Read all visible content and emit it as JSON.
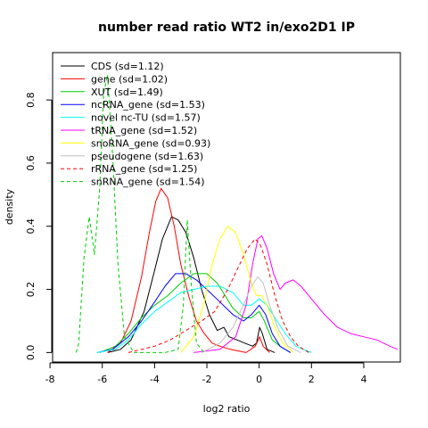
{
  "chart_data": {
    "type": "line",
    "title": "number read ratio WT2 in/exo2D1 IP",
    "xlabel": "log2 ratio",
    "ylabel": "density",
    "xlim": [
      -7.9,
      5.4
    ],
    "ylim": [
      -0.03,
      0.95
    ],
    "xticks": [
      -8,
      -6,
      -4,
      -2,
      0,
      2,
      4
    ],
    "yticks": [
      0.0,
      0.2,
      0.4,
      0.6,
      0.8
    ],
    "x_tick_labels": [
      "-8",
      "-6",
      "-4",
      "-2",
      "0",
      "2",
      "4"
    ],
    "y_tick_labels": [
      "0.0",
      "0.2",
      "0.4",
      "0.6",
      "0.8"
    ],
    "legend_position": "top-left",
    "grid": false,
    "series": [
      {
        "name": "CDS (sd=1.12)",
        "color": "#000000",
        "dash": "solid",
        "points": [
          [
            -5.8,
            0
          ],
          [
            -5.3,
            0.01
          ],
          [
            -4.9,
            0.04
          ],
          [
            -4.4,
            0.13
          ],
          [
            -4.0,
            0.26
          ],
          [
            -3.7,
            0.36
          ],
          [
            -3.35,
            0.43
          ],
          [
            -3.1,
            0.42
          ],
          [
            -2.8,
            0.38
          ],
          [
            -2.5,
            0.3
          ],
          [
            -2.2,
            0.2
          ],
          [
            -1.9,
            0.12
          ],
          [
            -1.6,
            0.07
          ],
          [
            -1.35,
            0.08
          ],
          [
            -1.15,
            0.05
          ],
          [
            -0.85,
            0.04
          ],
          [
            -0.55,
            0.03
          ],
          [
            -0.25,
            0.02
          ],
          [
            -0.1,
            0.03
          ],
          [
            0.02,
            0.08
          ],
          [
            0.12,
            0.06
          ],
          [
            0.3,
            0.01
          ],
          [
            0.6,
            0.0
          ]
        ]
      },
      {
        "name": "gene (sd=1.02)",
        "color": "#ff0000",
        "dash": "solid",
        "points": [
          [
            -5.8,
            0
          ],
          [
            -5.3,
            0.03
          ],
          [
            -4.9,
            0.1
          ],
          [
            -4.5,
            0.24
          ],
          [
            -4.2,
            0.38
          ],
          [
            -3.95,
            0.48
          ],
          [
            -3.75,
            0.52
          ],
          [
            -3.5,
            0.49
          ],
          [
            -3.25,
            0.4
          ],
          [
            -3.0,
            0.28
          ],
          [
            -2.7,
            0.18
          ],
          [
            -2.4,
            0.1
          ],
          [
            -2.1,
            0.06
          ],
          [
            -1.8,
            0.03
          ],
          [
            -1.5,
            0.02
          ],
          [
            -1.1,
            0.01
          ],
          [
            -0.5,
            0.0
          ],
          [
            -0.15,
            0.02
          ],
          [
            0.02,
            0.05
          ],
          [
            0.15,
            0.02
          ],
          [
            0.4,
            0.0
          ]
        ]
      },
      {
        "name": "XUT (sd=1.49)",
        "color": "#00cd00",
        "dash": "solid",
        "points": [
          [
            -6.1,
            0
          ],
          [
            -5.5,
            0.02
          ],
          [
            -5.0,
            0.06
          ],
          [
            -4.5,
            0.11
          ],
          [
            -4.0,
            0.15
          ],
          [
            -3.5,
            0.18
          ],
          [
            -3.0,
            0.22
          ],
          [
            -2.5,
            0.25
          ],
          [
            -2.0,
            0.25
          ],
          [
            -1.6,
            0.22
          ],
          [
            -1.3,
            0.18
          ],
          [
            -1.0,
            0.14
          ],
          [
            -0.6,
            0.11
          ],
          [
            -0.3,
            0.11
          ],
          [
            0.0,
            0.13
          ],
          [
            0.2,
            0.1
          ],
          [
            0.5,
            0.04
          ],
          [
            0.8,
            0.02
          ],
          [
            1.2,
            0.0
          ]
        ]
      },
      {
        "name": "ncRNA_gene (sd=1.53)",
        "color": "#0000ff",
        "dash": "solid",
        "points": [
          [
            -6.2,
            0
          ],
          [
            -5.6,
            0.01
          ],
          [
            -5.0,
            0.05
          ],
          [
            -4.5,
            0.1
          ],
          [
            -4.0,
            0.16
          ],
          [
            -3.6,
            0.21
          ],
          [
            -3.2,
            0.25
          ],
          [
            -2.8,
            0.25
          ],
          [
            -2.4,
            0.23
          ],
          [
            -2.0,
            0.2
          ],
          [
            -1.5,
            0.16
          ],
          [
            -1.0,
            0.12
          ],
          [
            -0.6,
            0.1
          ],
          [
            -0.3,
            0.12
          ],
          [
            0.0,
            0.15
          ],
          [
            0.25,
            0.12
          ],
          [
            0.5,
            0.06
          ],
          [
            0.8,
            0.02
          ],
          [
            1.2,
            0.0
          ]
        ]
      },
      {
        "name": "novel nc-TU (sd=1.57)",
        "color": "#00ffff",
        "dash": "solid",
        "points": [
          [
            -6.2,
            0
          ],
          [
            -5.5,
            0.01
          ],
          [
            -5.0,
            0.04
          ],
          [
            -4.5,
            0.09
          ],
          [
            -4.0,
            0.13
          ],
          [
            -3.5,
            0.16
          ],
          [
            -3.0,
            0.19
          ],
          [
            -2.5,
            0.2
          ],
          [
            -2.0,
            0.21
          ],
          [
            -1.5,
            0.21
          ],
          [
            -1.0,
            0.19
          ],
          [
            -0.6,
            0.15
          ],
          [
            -0.3,
            0.15
          ],
          [
            0.0,
            0.17
          ],
          [
            0.3,
            0.15
          ],
          [
            0.6,
            0.11
          ],
          [
            1.0,
            0.06
          ],
          [
            1.4,
            0.02
          ],
          [
            2.0,
            0.0
          ]
        ]
      },
      {
        "name": "tRNA_gene (sd=1.52)",
        "color": "#ff00ff",
        "dash": "solid",
        "points": [
          [
            -2.5,
            0
          ],
          [
            -1.5,
            0.01
          ],
          [
            -0.9,
            0.05
          ],
          [
            -0.5,
            0.15
          ],
          [
            -0.25,
            0.28
          ],
          [
            -0.05,
            0.36
          ],
          [
            0.1,
            0.37
          ],
          [
            0.3,
            0.33
          ],
          [
            0.55,
            0.25
          ],
          [
            0.8,
            0.2
          ],
          [
            1.0,
            0.22
          ],
          [
            1.3,
            0.23
          ],
          [
            1.6,
            0.21
          ],
          [
            2.0,
            0.17
          ],
          [
            2.5,
            0.12
          ],
          [
            3.0,
            0.08
          ],
          [
            3.5,
            0.06
          ],
          [
            4.0,
            0.05
          ],
          [
            4.5,
            0.04
          ],
          [
            5.0,
            0.02
          ],
          [
            5.3,
            0.01
          ]
        ]
      },
      {
        "name": "snoRNA_gene (sd=0.93)",
        "color": "#ffff00",
        "dash": "solid",
        "points": [
          [
            -3.0,
            0
          ],
          [
            -2.5,
            0.05
          ],
          [
            -2.1,
            0.16
          ],
          [
            -1.8,
            0.28
          ],
          [
            -1.5,
            0.36
          ],
          [
            -1.2,
            0.4
          ],
          [
            -0.9,
            0.38
          ],
          [
            -0.6,
            0.31
          ],
          [
            -0.3,
            0.22
          ],
          [
            -0.1,
            0.18
          ],
          [
            0.1,
            0.18
          ],
          [
            0.35,
            0.14
          ],
          [
            0.6,
            0.08
          ],
          [
            0.9,
            0.03
          ],
          [
            1.3,
            0.0
          ]
        ]
      },
      {
        "name": "pseudogene (sd=1.63)",
        "color": "#c0c0c0",
        "dash": "solid",
        "points": [
          [
            -2.2,
            0
          ],
          [
            -1.5,
            0.03
          ],
          [
            -1.0,
            0.08
          ],
          [
            -0.6,
            0.15
          ],
          [
            -0.3,
            0.21
          ],
          [
            -0.05,
            0.24
          ],
          [
            0.15,
            0.22
          ],
          [
            0.4,
            0.15
          ],
          [
            0.7,
            0.08
          ],
          [
            1.1,
            0.02
          ],
          [
            1.6,
            0.0
          ]
        ]
      },
      {
        "name": "rRNA_gene (sd=1.25)",
        "color": "#ff0000",
        "dash": "dashed",
        "points": [
          [
            -5.0,
            0
          ],
          [
            -4.0,
            0.02
          ],
          [
            -3.4,
            0.04
          ],
          [
            -2.8,
            0.07
          ],
          [
            -2.2,
            0.1
          ],
          [
            -1.7,
            0.13
          ],
          [
            -1.2,
            0.2
          ],
          [
            -0.8,
            0.27
          ],
          [
            -0.45,
            0.33
          ],
          [
            -0.15,
            0.36
          ],
          [
            0.05,
            0.34
          ],
          [
            0.3,
            0.28
          ],
          [
            0.6,
            0.18
          ],
          [
            0.9,
            0.1
          ],
          [
            1.2,
            0.05
          ],
          [
            1.5,
            0.02
          ],
          [
            1.9,
            0.0
          ]
        ]
      },
      {
        "name": "snRNA_gene (sd=1.54)",
        "color": "#00cd00",
        "dash": "dashed",
        "points": [
          [
            -7.0,
            0
          ],
          [
            -6.9,
            0.03
          ],
          [
            -6.7,
            0.3
          ],
          [
            -6.5,
            0.43
          ],
          [
            -6.3,
            0.31
          ],
          [
            -6.1,
            0.52
          ],
          [
            -5.95,
            0.82
          ],
          [
            -5.8,
            0.88
          ],
          [
            -5.6,
            0.62
          ],
          [
            -5.4,
            0.28
          ],
          [
            -5.15,
            0.05
          ],
          [
            -4.8,
            0.0
          ],
          [
            -3.6,
            0.0
          ],
          [
            -3.1,
            0.01
          ],
          [
            -2.9,
            0.15
          ],
          [
            -2.75,
            0.42
          ],
          [
            -2.6,
            0.22
          ],
          [
            -2.4,
            0.03
          ],
          [
            -2.1,
            0.0
          ]
        ]
      }
    ]
  }
}
